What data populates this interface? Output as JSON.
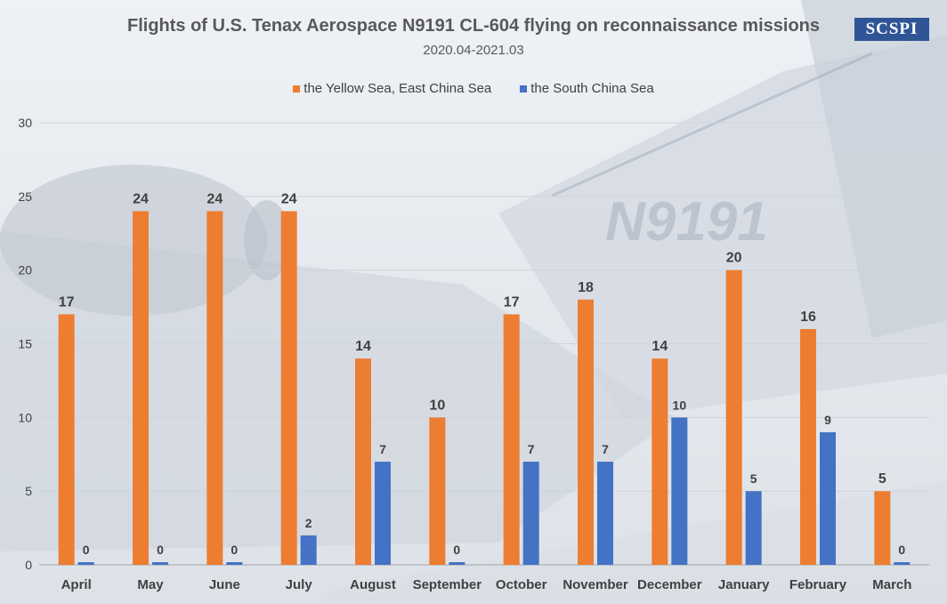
{
  "header": {
    "title": "Flights of U.S. Tenax Aerospace N9191 CL-604 flying on reconnaissance missions",
    "subtitle": "2020.04-2021.03",
    "logo_text": "SCSPI"
  },
  "background": {
    "tail_text": "N9191"
  },
  "colors": {
    "series1": "#ed7d31",
    "series2": "#4472c4",
    "logo": "#2f5597"
  },
  "chart_data": {
    "type": "bar",
    "title": "Flights of U.S. Tenax Aerospace N9191 CL-604 flying on reconnaissance missions",
    "subtitle": "2020.04-2021.03",
    "categories": [
      "April",
      "May",
      "June",
      "July",
      "August",
      "September",
      "October",
      "November",
      "December",
      "January",
      "February",
      "March"
    ],
    "series": [
      {
        "name": "the Yellow Sea, East China Sea",
        "values": [
          17,
          24,
          24,
          24,
          14,
          10,
          17,
          18,
          14,
          20,
          16,
          5
        ]
      },
      {
        "name": "the South China Sea",
        "values": [
          0,
          0,
          0,
          2,
          7,
          0,
          7,
          7,
          10,
          5,
          9,
          0
        ]
      }
    ],
    "ylim": [
      0,
      30
    ],
    "yticks": [
      "0",
      "5",
      "10",
      "15",
      "20",
      "25",
      "30"
    ],
    "grid": true,
    "legend": "top-center",
    "data_labels": true
  }
}
